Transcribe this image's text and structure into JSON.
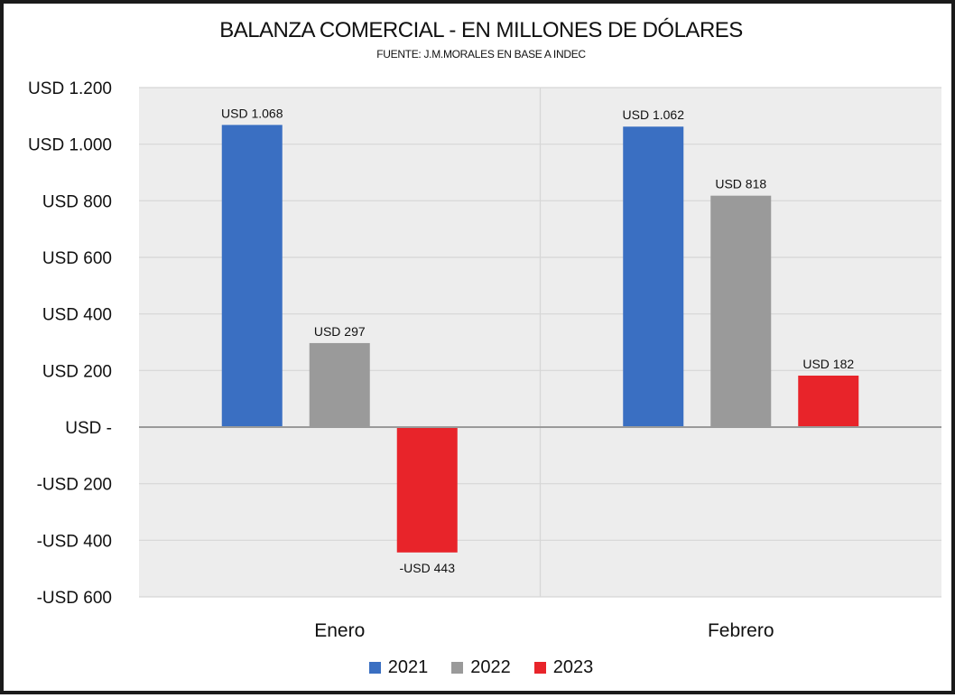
{
  "chart_data": {
    "type": "bar",
    "title": "BALANZA COMERCIAL - EN MILLONES DE DÓLARES",
    "subtitle": "FUENTE: J.M.MORALES EN BASE A INDEC",
    "categories": [
      "Enero",
      "Febrero"
    ],
    "series": [
      {
        "name": "2021",
        "color": "#3A6FC2",
        "values": [
          1068,
          1062
        ],
        "labels": [
          "USD 1.068",
          "USD 1.062"
        ]
      },
      {
        "name": "2022",
        "color": "#9A9A9A",
        "values": [
          297,
          818
        ],
        "labels": [
          "USD 297",
          "USD 818"
        ]
      },
      {
        "name": "2023",
        "color": "#E8242A",
        "values": [
          -443,
          182
        ],
        "labels": [
          "-USD 443",
          "USD 182"
        ]
      }
    ],
    "ylim": [
      -600,
      1200
    ],
    "yticks": [
      1200,
      1000,
      800,
      600,
      400,
      200,
      0,
      -200,
      -400,
      -600
    ],
    "ytick_labels": [
      "USD 1.200",
      "USD 1.000",
      "USD 800",
      "USD 600",
      "USD 400",
      "USD 200",
      "USD -",
      "-USD 200",
      "-USD 400",
      "-USD 600"
    ],
    "grid": true,
    "legend_position": "bottom"
  }
}
